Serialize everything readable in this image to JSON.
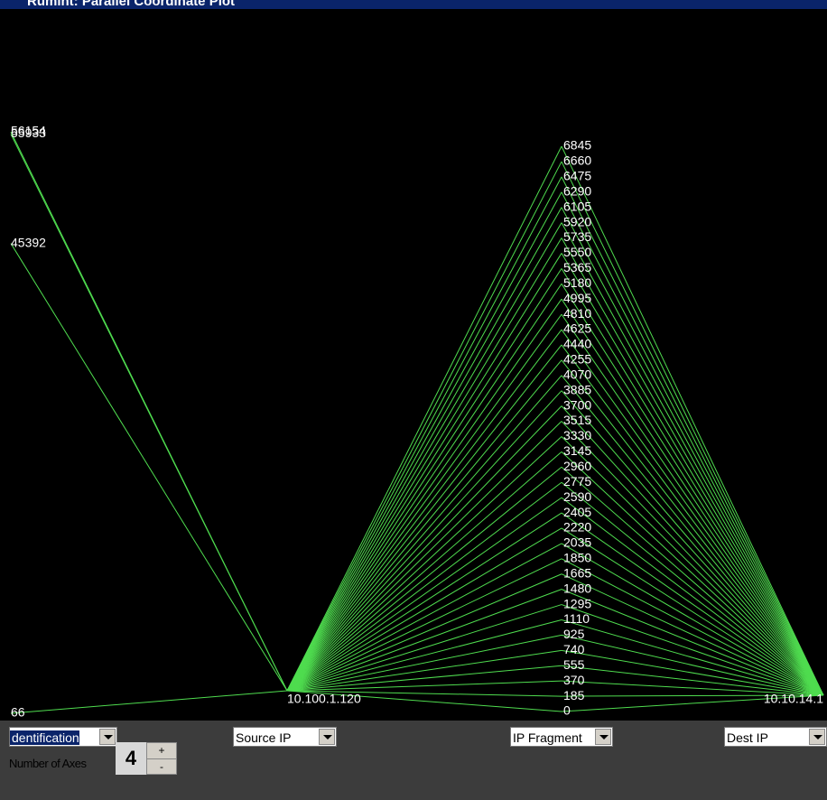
{
  "window": {
    "title": "Rumint: Parallel Coordinate Plot"
  },
  "plot": {
    "axes": [
      {
        "values": [
          56154,
          55933,
          45392,
          66
        ]
      },
      {
        "values": [
          "10.100.1.120"
        ]
      },
      {
        "values": [
          0,
          185,
          370,
          555,
          740,
          925,
          1110,
          1295,
          1480,
          1665,
          1850,
          2035,
          2220,
          2405,
          2590,
          2775,
          2960,
          3145,
          3330,
          3515,
          3700,
          3885,
          4070,
          4255,
          4440,
          4625,
          4810,
          4995,
          5180,
          5365,
          5550,
          5735,
          5920,
          6105,
          6290,
          6475,
          6660,
          6845
        ]
      },
      {
        "values": [
          "10.10.14.1"
        ]
      }
    ]
  },
  "controls": {
    "axis_selectors": [
      "dentification",
      "Source IP",
      "IP Fragment",
      "Dest IP"
    ],
    "axes_label": "Number of Axes",
    "axes_count": 4
  }
}
